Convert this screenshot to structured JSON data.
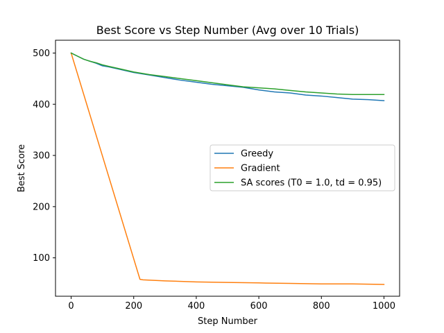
{
  "chart_data": {
    "type": "line",
    "title": "Best Score vs Step Number (Avg over 10 Trials)",
    "xlabel": "Step Number",
    "ylabel": "Best Score",
    "xlim": [
      -50,
      1050
    ],
    "ylim": [
      25,
      525
    ],
    "xticks": [
      0,
      200,
      400,
      600,
      800,
      1000
    ],
    "yticks": [
      100,
      200,
      300,
      400,
      500
    ],
    "grid": false,
    "legend": "center-right",
    "series": [
      {
        "name": "Greedy",
        "color": "#1f77b4",
        "x": [
          0,
          20,
          40,
          60,
          80,
          100,
          120,
          150,
          200,
          250,
          300,
          350,
          400,
          450,
          500,
          550,
          600,
          650,
          700,
          750,
          800,
          850,
          900,
          950,
          1000
        ],
        "y": [
          500,
          494,
          488,
          484,
          480,
          475,
          473,
          469,
          462,
          457,
          452,
          447,
          443,
          439,
          436,
          433,
          428,
          424,
          422,
          418,
          416,
          413,
          410,
          409,
          407
        ]
      },
      {
        "name": "Gradient",
        "color": "#ff7f0e",
        "x": [
          0,
          220,
          230,
          300,
          400,
          500,
          600,
          700,
          800,
          900,
          1000
        ],
        "y": [
          500,
          58,
          57,
          55,
          53,
          52,
          51,
          50,
          49,
          49,
          48
        ]
      },
      {
        "name": "SA scores (T0 = 1.0, td = 0.95)",
        "color": "#2ca02c",
        "x": [
          0,
          20,
          40,
          60,
          80,
          100,
          120,
          150,
          200,
          250,
          300,
          350,
          400,
          450,
          500,
          550,
          600,
          650,
          700,
          750,
          800,
          850,
          900,
          950,
          1000
        ],
        "y": [
          500,
          494,
          488,
          484,
          481,
          477,
          474,
          470,
          463,
          458,
          454,
          450,
          446,
          442,
          438,
          434,
          432,
          430,
          427,
          424,
          422,
          420,
          419,
          419,
          419
        ]
      }
    ]
  }
}
